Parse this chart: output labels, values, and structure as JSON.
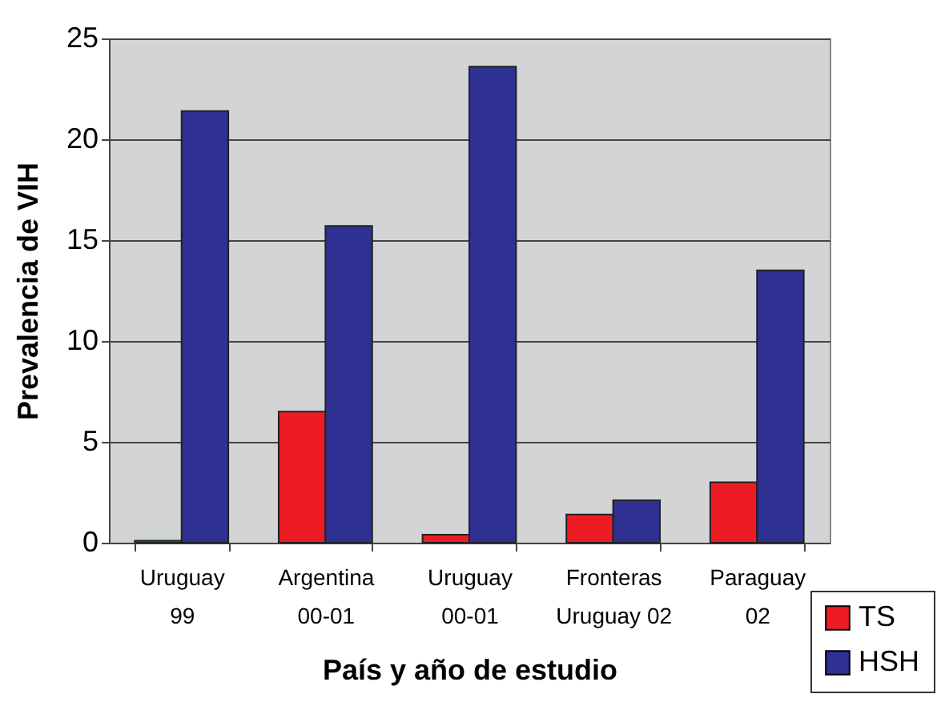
{
  "chart_data": {
    "type": "bar",
    "xlabel": "País y año de estudio",
    "ylabel": "Prevalencia de VIH",
    "categories": [
      "Uruguay\n99",
      "Argentina\n00-01",
      "Uruguay\n00-01",
      "Fronteras\nUruguay 02",
      "Paraguay\n02"
    ],
    "series": [
      {
        "name": "TS",
        "color": "#ed1c24",
        "values": [
          0.1,
          6.5,
          0.4,
          1.4,
          3.0
        ]
      },
      {
        "name": "HSH",
        "color": "#2e3192",
        "values": [
          21.4,
          15.7,
          23.6,
          2.1,
          13.5
        ]
      }
    ],
    "ylim": [
      0,
      25
    ],
    "yticks": [
      0,
      5,
      10,
      15,
      20,
      25
    ],
    "grid": "y",
    "legend": "bottom right"
  }
}
